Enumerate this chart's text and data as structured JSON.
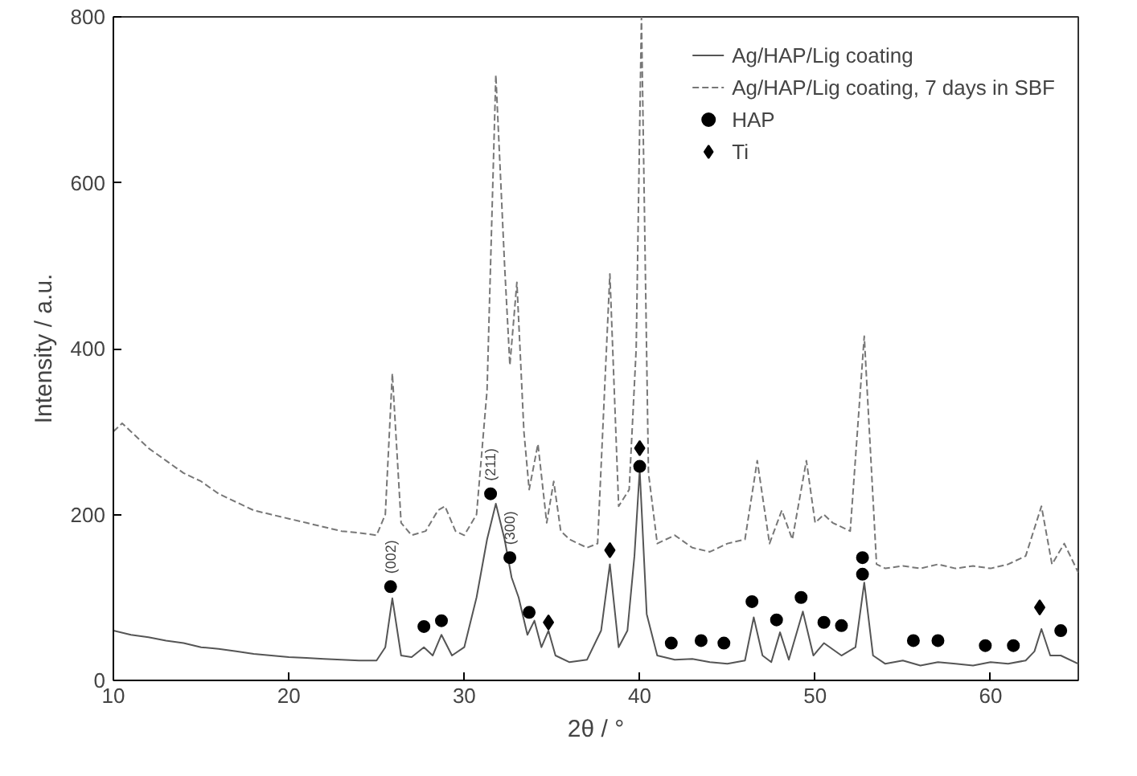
{
  "chart_data": {
    "type": "line",
    "xlabel": "2θ / °",
    "ylabel": "Intensity / a.u.",
    "xlim": [
      10,
      65
    ],
    "ylim": [
      0,
      800
    ],
    "xticks": [
      10,
      20,
      30,
      40,
      50,
      60
    ],
    "yticks": [
      0,
      200,
      400,
      600,
      800
    ],
    "grid": false,
    "legend": "top right",
    "series": [
      {
        "name": "Ag/HAP/Lig coating",
        "color": "#555555",
        "line_style": "solid",
        "x": [
          10,
          11,
          12,
          13,
          14,
          15,
          16,
          17,
          18,
          19,
          20,
          21,
          22,
          23,
          24,
          25,
          25.5,
          25.9,
          26.4,
          27,
          27.7,
          28.2,
          28.7,
          29.3,
          30,
          30.7,
          31.3,
          31.8,
          32.3,
          32.7,
          33.1,
          33.6,
          34,
          34.4,
          34.8,
          35.2,
          36,
          37,
          37.8,
          38.3,
          38.8,
          39.3,
          39.7,
          40,
          40.4,
          41,
          42,
          43,
          44,
          45,
          46,
          46.5,
          47,
          47.5,
          48,
          48.5,
          49.3,
          49.9,
          50.5,
          51.5,
          52.3,
          52.8,
          53.3,
          54,
          55,
          56,
          57,
          58,
          59,
          60,
          61,
          62,
          62.5,
          62.9,
          63.4,
          64,
          65
        ],
        "values": [
          60,
          55,
          52,
          48,
          45,
          40,
          38,
          35,
          32,
          30,
          28,
          27,
          26,
          25,
          24,
          24,
          40,
          99,
          30,
          28,
          40,
          30,
          55,
          30,
          40,
          100,
          170,
          213,
          170,
          124,
          100,
          55,
          72,
          40,
          60,
          30,
          22,
          25,
          60,
          140,
          40,
          60,
          150,
          254,
          80,
          30,
          25,
          26,
          22,
          20,
          24,
          76,
          30,
          22,
          58,
          25,
          83,
          30,
          45,
          30,
          40,
          118,
          30,
          20,
          24,
          18,
          22,
          20,
          18,
          22,
          20,
          24,
          35,
          62,
          30,
          30,
          20
        ]
      },
      {
        "name": "Ag/HAP/Lig coating, 7 days in SBF",
        "color": "#777777",
        "line_style": "dashed",
        "x": [
          10,
          10.5,
          11,
          12,
          13,
          14,
          15,
          16,
          17,
          18,
          19,
          20,
          21,
          22,
          23,
          24,
          25,
          25.5,
          25.9,
          26.4,
          27,
          27.8,
          28.5,
          28.9,
          29.5,
          30,
          30.7,
          31.3,
          31.8,
          32.3,
          32.6,
          33,
          33.4,
          33.7,
          34.2,
          34.7,
          35.1,
          35.5,
          36,
          37,
          37.6,
          38.3,
          38.8,
          39.4,
          39.8,
          40.1,
          40.5,
          41,
          42,
          43,
          44,
          45,
          46,
          46.7,
          47.4,
          48.1,
          48.7,
          49.5,
          50,
          50.5,
          51,
          52,
          52.8,
          53.5,
          54,
          55,
          56,
          57,
          58,
          59,
          60,
          61,
          62,
          62.9,
          63.5,
          64.2,
          65
        ],
        "values": [
          300,
          310,
          300,
          280,
          265,
          250,
          240,
          225,
          215,
          205,
          200,
          195,
          190,
          185,
          180,
          178,
          175,
          200,
          370,
          190,
          175,
          180,
          205,
          210,
          180,
          175,
          200,
          350,
          730,
          500,
          380,
          480,
          300,
          230,
          285,
          190,
          240,
          180,
          170,
          160,
          165,
          490,
          210,
          230,
          400,
          800,
          250,
          165,
          175,
          160,
          155,
          165,
          170,
          265,
          165,
          205,
          170,
          265,
          190,
          200,
          190,
          180,
          415,
          140,
          135,
          138,
          135,
          140,
          135,
          138,
          135,
          140,
          150,
          210,
          140,
          165,
          130
        ]
      },
      {
        "name": "HAP",
        "type": "scatter",
        "color": "#000000",
        "marker": "circle",
        "x": [
          25.8,
          27.7,
          28.7,
          31.5,
          32.6,
          33.7,
          40,
          41.8,
          43.5,
          44.8,
          46.4,
          47.8,
          49.2,
          50.5,
          51.5,
          52.7,
          52.7,
          55.6,
          57,
          59.7,
          61.3,
          64
        ],
        "values": [
          113,
          65,
          72,
          225,
          148,
          82,
          258,
          45,
          48,
          45,
          95,
          73,
          100,
          70,
          66,
          148,
          128,
          48,
          48,
          42,
          42,
          60
        ]
      },
      {
        "name": "Ti",
        "type": "scatter",
        "color": "#000000",
        "marker": "diamond",
        "x": [
          34.8,
          38.3,
          40,
          62.8
        ],
        "values": [
          70,
          157,
          280,
          88
        ]
      }
    ],
    "annotations": [
      {
        "text": "(002)",
        "x": 25.8,
        "y": 113
      },
      {
        "text": "(211)",
        "x": 31.5,
        "y": 225
      },
      {
        "text": "(300)",
        "x": 32.6,
        "y": 148
      }
    ]
  }
}
